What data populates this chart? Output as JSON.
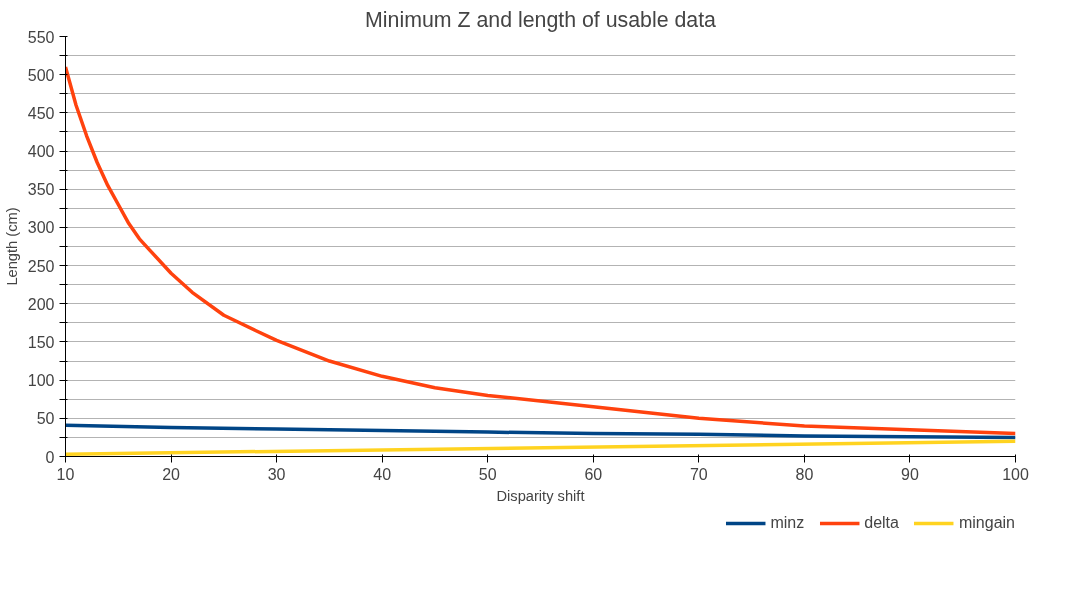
{
  "chart_data": {
    "type": "line",
    "title": "Minimum Z and length of usable data",
    "xlabel": "Disparity shift",
    "ylabel": "Length (cm)",
    "xlim": [
      10,
      100
    ],
    "xticks": [
      10,
      20,
      30,
      40,
      50,
      60,
      70,
      80,
      90,
      100
    ],
    "ylim": [
      0,
      550
    ],
    "yticks": [
      0,
      {
        "value": 25,
        "label": null
      },
      50,
      {
        "value": 75,
        "label": null
      },
      100,
      {
        "value": 125,
        "label": null
      },
      150,
      {
        "value": 175,
        "label": null
      },
      200,
      {
        "value": 225,
        "label": null
      },
      250,
      {
        "value": 275,
        "label": null
      },
      300,
      {
        "value": 325,
        "label": null
      },
      350,
      {
        "value": 375,
        "label": null
      },
      400,
      {
        "value": 425,
        "label": null
      },
      450,
      {
        "value": 475,
        "label": null
      },
      500,
      {
        "value": 525,
        "label": null
      },
      550
    ],
    "grid": "y",
    "legend": "bottom right",
    "marker": "none",
    "line_style": "solid",
    "series": [
      {
        "name": "minz",
        "color": "#004586",
        "x": [
          10,
          20,
          30,
          40,
          50,
          60,
          70,
          80,
          90,
          100
        ],
        "values": [
          41,
          38,
          36,
          34,
          32,
          30,
          29,
          27,
          26,
          25
        ]
      },
      {
        "name": "delta",
        "color": "#ff420e",
        "x": [
          10,
          11,
          12,
          13,
          14,
          15,
          16,
          17,
          18,
          20,
          22,
          25,
          28,
          30,
          35,
          40,
          45,
          50,
          60,
          70,
          80,
          90,
          100
        ],
        "values": [
          510,
          460,
          420,
          385,
          355,
          330,
          305,
          285,
          270,
          240,
          215,
          185,
          165,
          152,
          125,
          105,
          90,
          80,
          65,
          50,
          40,
          35,
          30
        ]
      },
      {
        "name": "mingain",
        "color": "#ffd320",
        "x": [
          10,
          100
        ],
        "values": [
          3,
          20
        ]
      }
    ]
  }
}
